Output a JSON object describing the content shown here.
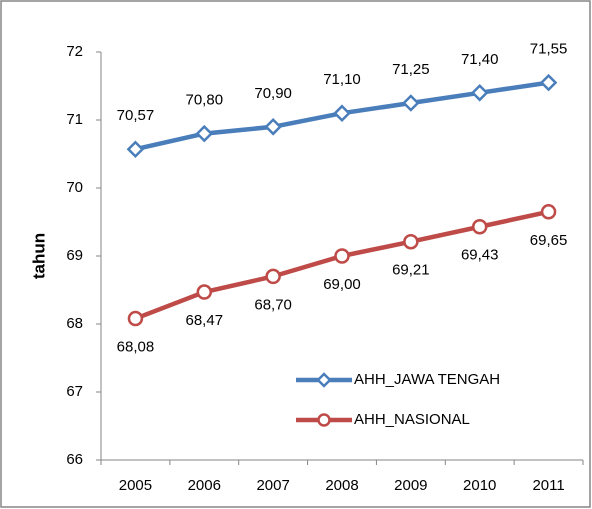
{
  "chart_data": {
    "type": "line",
    "categories": [
      "2005",
      "2006",
      "2007",
      "2008",
      "2009",
      "2010",
      "2011"
    ],
    "series": [
      {
        "name": "AHH_JAWA TENGAH",
        "color": "#4a7ebb",
        "marker": "diamond",
        "values": [
          70.57,
          70.8,
          70.9,
          71.1,
          71.25,
          71.4,
          71.55
        ],
        "value_labels": [
          "70,57",
          "70,80",
          "70,90",
          "71,10",
          "71,25",
          "71,40",
          "71,55"
        ]
      },
      {
        "name": "AHH_NASIONAL",
        "color": "#be4b48",
        "marker": "circle",
        "values": [
          68.08,
          68.47,
          68.7,
          69.0,
          69.21,
          69.43,
          69.65
        ],
        "value_labels": [
          "68,08",
          "68,47",
          "68,70",
          "69,00",
          "69,21",
          "69,43",
          "69,65"
        ]
      }
    ],
    "y_label": "tahun",
    "ylim": [
      66,
      72
    ],
    "yticks": [
      66,
      67,
      68,
      69,
      70,
      71,
      72
    ],
    "legend": "lower right"
  }
}
